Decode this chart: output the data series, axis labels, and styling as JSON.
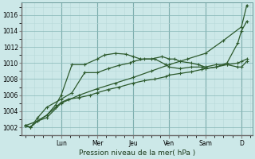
{
  "bg_color": "#cce8e8",
  "grid_color_minor": "#b8d8d8",
  "grid_color_major": "#88b8b8",
  "line_color": "#2d5a2d",
  "xlabel": "Pression niveau de la mer( hPa )",
  "ylim": [
    1001.0,
    1017.5
  ],
  "yticks": [
    1002,
    1004,
    1006,
    1008,
    1010,
    1012,
    1014,
    1016
  ],
  "day_labels": [
    "Lun",
    "Mer",
    "Jeu",
    "Ven",
    "Sam",
    "D"
  ],
  "day_positions": [
    1.0,
    2.0,
    3.0,
    4.0,
    5.0,
    6.0
  ],
  "xlim": [
    -0.1,
    6.3
  ],
  "line1_x": [
    0.0,
    0.15,
    0.35,
    0.6,
    0.85,
    1.0,
    1.2,
    1.5,
    1.8,
    2.0,
    2.3,
    2.6,
    3.0,
    3.3,
    3.6,
    3.9,
    4.0,
    4.3,
    4.6,
    4.9,
    5.0,
    5.3,
    5.6,
    5.9,
    6.0,
    6.15
  ],
  "line1_y": [
    1002.2,
    1002.0,
    1002.8,
    1003.5,
    1004.5,
    1005.1,
    1005.5,
    1005.7,
    1006.0,
    1006.3,
    1006.7,
    1007.0,
    1007.5,
    1007.8,
    1008.0,
    1008.3,
    1008.5,
    1008.7,
    1008.9,
    1009.2,
    1009.3,
    1009.5,
    1009.8,
    1010.0,
    1010.2,
    1010.5
  ],
  "line2_x": [
    0.0,
    0.15,
    0.35,
    0.6,
    0.85,
    1.0,
    1.3,
    1.65,
    2.0,
    2.2,
    2.5,
    2.8,
    3.0,
    3.2,
    3.5,
    3.8,
    4.0,
    4.15,
    4.3,
    4.6,
    4.8,
    5.0,
    5.3,
    5.6,
    5.9,
    6.0,
    6.15
  ],
  "line2_y": [
    1002.2,
    1002.0,
    1002.8,
    1003.5,
    1004.8,
    1006.0,
    1009.8,
    1009.8,
    1010.5,
    1011.0,
    1011.2,
    1011.1,
    1010.8,
    1010.5,
    1010.5,
    1010.8,
    1010.5,
    1010.5,
    1010.2,
    1010.0,
    1009.8,
    1009.5,
    1009.8,
    1009.8,
    1009.5,
    1009.5,
    1010.2
  ],
  "line3_x": [
    0.0,
    0.15,
    0.35,
    0.6,
    1.0,
    1.3,
    1.65,
    2.0,
    2.3,
    2.6,
    2.9,
    3.0,
    3.3,
    3.6,
    3.9,
    4.0,
    4.3,
    4.6,
    4.9,
    5.0,
    5.3,
    5.6,
    5.9,
    6.0,
    6.15
  ],
  "line3_y": [
    1002.2,
    1002.0,
    1003.2,
    1004.5,
    1005.5,
    1006.3,
    1008.8,
    1008.8,
    1009.3,
    1009.7,
    1010.0,
    1010.2,
    1010.5,
    1010.5,
    1009.8,
    1009.5,
    1009.3,
    1009.5,
    1009.5,
    1009.3,
    1009.5,
    1010.0,
    1012.5,
    1014.0,
    1015.2
  ],
  "line4_x": [
    0.0,
    0.6,
    1.0,
    1.5,
    2.0,
    2.5,
    3.0,
    3.5,
    4.0,
    4.5,
    5.0,
    5.5,
    6.0,
    6.15
  ],
  "line4_y": [
    1002.2,
    1003.2,
    1005.0,
    1006.0,
    1006.8,
    1007.5,
    1008.2,
    1009.0,
    1009.8,
    1010.5,
    1011.2,
    1012.8,
    1014.5,
    1017.2
  ]
}
